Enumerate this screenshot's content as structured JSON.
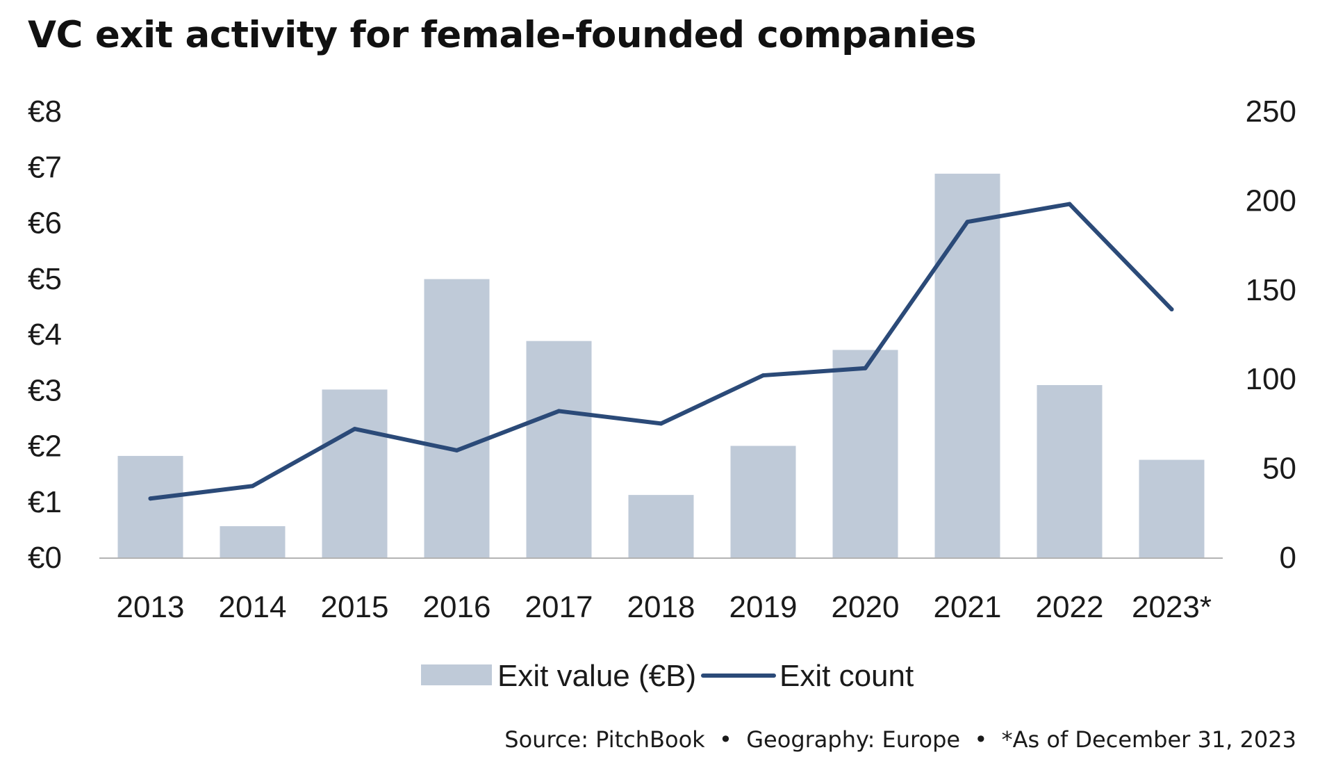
{
  "chart_data": {
    "type": "bar",
    "title": "VC exit activity for female-founded companies",
    "categories": [
      "2013",
      "2014",
      "2015",
      "2016",
      "2017",
      "2018",
      "2019",
      "2020",
      "2021",
      "2022",
      "2023*"
    ],
    "series": [
      {
        "name": "Exit value (€B)",
        "type": "bar",
        "axis": "left",
        "color": "#bfcad8",
        "values": [
          1.82,
          0.56,
          3.01,
          4.99,
          3.88,
          1.12,
          2.0,
          3.72,
          6.88,
          3.09,
          1.75
        ]
      },
      {
        "name": "Exit count",
        "type": "line",
        "axis": "right",
        "color": "#2b4a78",
        "values": [
          33,
          40,
          72,
          60,
          82,
          75,
          102,
          106,
          188,
          198,
          139
        ]
      }
    ],
    "y_left": {
      "range": [
        0,
        8
      ],
      "ticks": [
        0,
        1,
        2,
        3,
        4,
        5,
        6,
        7,
        8
      ],
      "tick_labels": [
        "€0",
        "€1",
        "€2",
        "€3",
        "€4",
        "€5",
        "€6",
        "€7",
        "€8"
      ]
    },
    "y_right": {
      "range": [
        0,
        250
      ],
      "ticks": [
        0,
        50,
        100,
        150,
        200,
        250
      ],
      "tick_labels": [
        "0",
        "50",
        "100",
        "150",
        "200",
        "250"
      ]
    },
    "xlabel": "",
    "ylabel": "",
    "grid": false,
    "legend": {
      "placement": "bottom-center",
      "entries": [
        "Exit value (€B)",
        "Exit count"
      ]
    },
    "source": "Source: PitchBook  •  Geography: Europe  •  *As of December 31, 2023"
  },
  "colors": {
    "bar": "#bfcad8",
    "line": "#2b4a78",
    "axis": "#b3b3b3",
    "text": "#1a1a1a"
  }
}
